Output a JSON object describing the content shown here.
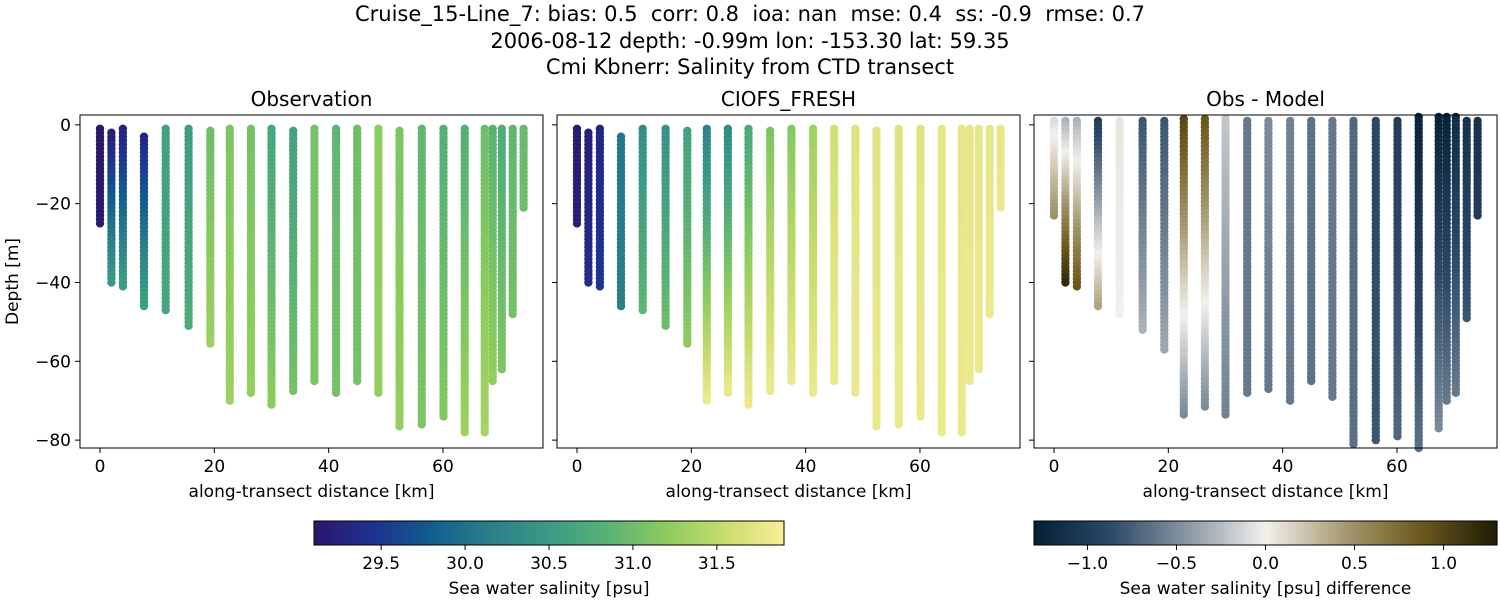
{
  "title_lines": [
    "Cruise_15-Line_7: bias: 0.5  corr: 0.8  ioa: nan  mse: 0.4  ss: -0.9  rmse: 0.7",
    "2006-08-12 depth: -0.99m lon: -153.30 lat: 59.35",
    "Cmi Kbnerr: Salinity from CTD transect"
  ],
  "colors": {
    "haline": [
      "#2a186c",
      "#1f3190",
      "#0f5f8e",
      "#2b7f8a",
      "#3a9a84",
      "#58b275",
      "#8ccc5d",
      "#c8dc6e",
      "#fbee9a"
    ],
    "diff": [
      "#041f35",
      "#2c4a68",
      "#8a97a3",
      "#f2f0ec",
      "#a89b73",
      "#6d5a1c",
      "#1f1c06"
    ]
  },
  "chart_data": [
    {
      "type": "scatter",
      "title": "Observation",
      "xlabel": "along-transect distance [km]",
      "ylabel": "Depth [m]",
      "xlim": [
        -3.5,
        77.5
      ],
      "ylim": [
        -82,
        2.5
      ],
      "xticks": [
        0,
        20,
        40,
        60
      ],
      "yticks": [
        0,
        -20,
        -40,
        -60,
        -80
      ],
      "colormap": "haline",
      "clim": [
        29.1,
        31.9
      ],
      "casts": [
        {
          "x": 0,
          "bottom": -25,
          "top": -1,
          "v_top": 29.1,
          "v_bottom": 29.15
        },
        {
          "x": 2,
          "bottom": -40.5,
          "top": -2,
          "v_top": 29.2,
          "v_bottom": 30.5
        },
        {
          "x": 4,
          "bottom": -41.5,
          "top": -1,
          "v_top": 29.25,
          "v_bottom": 30.55
        },
        {
          "x": 7.7,
          "bottom": -46.5,
          "top": -3,
          "v_top": 29.3,
          "v_bottom": 30.6
        },
        {
          "x": 11.5,
          "bottom": -47.5,
          "top": -1,
          "v_top": 30.6,
          "v_bottom": 30.65
        },
        {
          "x": 15.5,
          "bottom": -51.5,
          "top": -1,
          "v_top": 30.55,
          "v_bottom": 30.75
        },
        {
          "x": 19.3,
          "bottom": -55.5,
          "top": -1.5,
          "v_top": 31.0,
          "v_bottom": 31.3
        },
        {
          "x": 22.7,
          "bottom": -70,
          "top": -1,
          "v_top": 31.1,
          "v_bottom": 31.3
        },
        {
          "x": 26.4,
          "bottom": -68.5,
          "top": -1,
          "v_top": 31.05,
          "v_bottom": 31.25
        },
        {
          "x": 30,
          "bottom": -71,
          "top": -1,
          "v_top": 30.65,
          "v_bottom": 31.2
        },
        {
          "x": 33.8,
          "bottom": -67.5,
          "top": -1.5,
          "v_top": 30.6,
          "v_bottom": 31.05
        },
        {
          "x": 37.5,
          "bottom": -65.5,
          "top": -1,
          "v_top": 31.05,
          "v_bottom": 31.1
        },
        {
          "x": 41.3,
          "bottom": -68.5,
          "top": -1,
          "v_top": 30.9,
          "v_bottom": 31.05
        },
        {
          "x": 45,
          "bottom": -65,
          "top": -1,
          "v_top": 31.0,
          "v_bottom": 31.05
        },
        {
          "x": 48.7,
          "bottom": -68.5,
          "top": -1,
          "v_top": 31.2,
          "v_bottom": 31.25
        },
        {
          "x": 52.4,
          "bottom": -77,
          "top": -1.5,
          "v_top": 31.1,
          "v_bottom": 31.25
        },
        {
          "x": 56.3,
          "bottom": -76,
          "top": -1,
          "v_top": 30.9,
          "v_bottom": 31.1
        },
        {
          "x": 60.1,
          "bottom": -74,
          "top": -1,
          "v_top": 30.8,
          "v_bottom": 31.15
        },
        {
          "x": 63.8,
          "bottom": -78,
          "top": -1,
          "v_top": 30.8,
          "v_bottom": 31.3
        },
        {
          "x": 67.3,
          "bottom": -78,
          "top": -1,
          "v_top": 31.0,
          "v_bottom": 31.35
        },
        {
          "x": 68.7,
          "bottom": -65.5,
          "top": -1,
          "v_top": 30.85,
          "v_bottom": 31.25
        },
        {
          "x": 70.3,
          "bottom": -62,
          "top": -1,
          "v_top": 30.75,
          "v_bottom": 31.1
        },
        {
          "x": 72.2,
          "bottom": -48.5,
          "top": -1,
          "v_top": 30.9,
          "v_bottom": 31.05
        },
        {
          "x": 74.1,
          "bottom": -21.5,
          "top": -1,
          "v_top": 30.95,
          "v_bottom": 31.0
        }
      ]
    },
    {
      "type": "scatter",
      "title": "CIOFS_FRESH",
      "xlabel": "along-transect distance [km]",
      "ylabel": "",
      "xlim": [
        -3.5,
        77.5
      ],
      "ylim": [
        -82,
        2.5
      ],
      "xticks": [
        0,
        20,
        40,
        60
      ],
      "yticks": [
        0,
        -20,
        -40,
        -60,
        -80
      ],
      "colormap": "haline",
      "clim": [
        29.1,
        31.9
      ],
      "casts": [
        {
          "x": 0,
          "bottom": -25,
          "top": -1,
          "v_top": 29.15,
          "v_bottom": 29.2
        },
        {
          "x": 2,
          "bottom": -40.5,
          "top": -2,
          "v_top": 29.2,
          "v_bottom": 29.4
        },
        {
          "x": 4,
          "bottom": -41.5,
          "top": -1,
          "v_top": 29.3,
          "v_bottom": 29.5
        },
        {
          "x": 7.7,
          "bottom": -46.5,
          "top": -3,
          "v_top": 30.05,
          "v_bottom": 30.15
        },
        {
          "x": 11.5,
          "bottom": -47.5,
          "top": -1,
          "v_top": 30.35,
          "v_bottom": 30.9
        },
        {
          "x": 15.5,
          "bottom": -51.5,
          "top": -1,
          "v_top": 30.4,
          "v_bottom": 31.0
        },
        {
          "x": 19.3,
          "bottom": -55.5,
          "top": -1.5,
          "v_top": 30.6,
          "v_bottom": 31.2
        },
        {
          "x": 22.7,
          "bottom": -70,
          "top": -1,
          "v_top": 30.2,
          "v_bottom": 31.8
        },
        {
          "x": 26.4,
          "bottom": -68.5,
          "top": -1,
          "v_top": 30.3,
          "v_bottom": 31.8
        },
        {
          "x": 30,
          "bottom": -71,
          "top": -1,
          "v_top": 30.7,
          "v_bottom": 31.8
        },
        {
          "x": 33.8,
          "bottom": -67.5,
          "top": -1.5,
          "v_top": 31.1,
          "v_bottom": 31.8
        },
        {
          "x": 37.5,
          "bottom": -65.5,
          "top": -1,
          "v_top": 31.15,
          "v_bottom": 31.8
        },
        {
          "x": 41.3,
          "bottom": -68.5,
          "top": -1,
          "v_top": 31.3,
          "v_bottom": 31.8
        },
        {
          "x": 45,
          "bottom": -65,
          "top": -1,
          "v_top": 31.6,
          "v_bottom": 31.8
        },
        {
          "x": 48.7,
          "bottom": -68.5,
          "top": -1,
          "v_top": 31.7,
          "v_bottom": 31.8
        },
        {
          "x": 52.4,
          "bottom": -77,
          "top": -1.5,
          "v_top": 31.7,
          "v_bottom": 31.8
        },
        {
          "x": 56.3,
          "bottom": -76,
          "top": -1,
          "v_top": 31.7,
          "v_bottom": 31.8
        },
        {
          "x": 60.1,
          "bottom": -74,
          "top": -1,
          "v_top": 31.7,
          "v_bottom": 31.8
        },
        {
          "x": 63.8,
          "bottom": -78,
          "top": -1,
          "v_top": 31.75,
          "v_bottom": 31.8
        },
        {
          "x": 67.3,
          "bottom": -78,
          "top": -1,
          "v_top": 31.75,
          "v_bottom": 31.8
        },
        {
          "x": 68.7,
          "bottom": -65.5,
          "top": -1,
          "v_top": 31.75,
          "v_bottom": 31.8
        },
        {
          "x": 70.3,
          "bottom": -62,
          "top": -1,
          "v_top": 31.75,
          "v_bottom": 31.8
        },
        {
          "x": 72.2,
          "bottom": -48.5,
          "top": -1,
          "v_top": 31.75,
          "v_bottom": 31.8
        },
        {
          "x": 74.1,
          "bottom": -21.5,
          "top": -1,
          "v_top": 31.75,
          "v_bottom": 31.8
        }
      ]
    },
    {
      "type": "scatter",
      "title": "Obs - Model",
      "xlabel": "along-transect distance [km]",
      "ylabel": "",
      "xlim": [
        -3.5,
        77.5
      ],
      "ylim": [
        -82,
        2.5
      ],
      "xticks": [
        0,
        20,
        40,
        60
      ],
      "yticks": [
        0,
        -20,
        -40,
        -60,
        -80
      ],
      "colormap": "diff",
      "clim": [
        -1.3,
        1.3
      ],
      "casts": [
        {
          "x": 0,
          "bottom": -23.5,
          "top": 1,
          "v_top": -0.1,
          "v_bottom": 0.5
        },
        {
          "x": 2,
          "bottom": -40.5,
          "top": 1,
          "v_top": -0.3,
          "v_bottom": 1.2
        },
        {
          "x": 4,
          "bottom": -41.5,
          "top": 1,
          "v_top": -0.3,
          "v_bottom": 0.9
        },
        {
          "x": 7.7,
          "bottom": -46.5,
          "top": 1,
          "v_top": -1.0,
          "v_bottom": 0.4
        },
        {
          "x": 11.5,
          "bottom": -48.5,
          "top": 1,
          "v_top": 0.05,
          "v_bottom": 0.0
        },
        {
          "x": 15.5,
          "bottom": -52.5,
          "top": 1,
          "v_top": -0.8,
          "v_bottom": -0.3
        },
        {
          "x": 19.3,
          "bottom": -57,
          "top": 1,
          "v_top": -0.8,
          "v_bottom": -0.35
        },
        {
          "x": 22.7,
          "bottom": -73.5,
          "top": 1.5,
          "v_top": 1.0,
          "v_bottom": -0.5
        },
        {
          "x": 26.4,
          "bottom": -71.5,
          "top": 1.5,
          "v_top": 0.9,
          "v_bottom": -0.5
        },
        {
          "x": 30,
          "bottom": -73.5,
          "top": 1.5,
          "v_top": -0.2,
          "v_bottom": -0.55
        },
        {
          "x": 33.8,
          "bottom": -68.5,
          "top": 1,
          "v_top": -0.6,
          "v_bottom": -0.6
        },
        {
          "x": 37.5,
          "bottom": -67,
          "top": 1,
          "v_top": -0.5,
          "v_bottom": -0.6
        },
        {
          "x": 41.3,
          "bottom": -70,
          "top": 1,
          "v_top": -0.55,
          "v_bottom": -0.6
        },
        {
          "x": 45,
          "bottom": -65.5,
          "top": 1,
          "v_top": -0.65,
          "v_bottom": -0.65
        },
        {
          "x": 48.7,
          "bottom": -69.5,
          "top": 1,
          "v_top": -0.6,
          "v_bottom": -0.6
        },
        {
          "x": 52.4,
          "bottom": -81,
          "top": 1,
          "v_top": -0.7,
          "v_bottom": -0.65
        },
        {
          "x": 56.3,
          "bottom": -80,
          "top": 1,
          "v_top": -0.9,
          "v_bottom": -0.8
        },
        {
          "x": 60.1,
          "bottom": -79,
          "top": 1,
          "v_top": -1.0,
          "v_bottom": -0.7
        },
        {
          "x": 63.8,
          "bottom": -82,
          "top": 2,
          "v_top": -1.25,
          "v_bottom": -0.65
        },
        {
          "x": 67.3,
          "bottom": -77.5,
          "top": 2,
          "v_top": -1.25,
          "v_bottom": -0.5
        },
        {
          "x": 68.7,
          "bottom": -70,
          "top": 2,
          "v_top": -1.25,
          "v_bottom": -0.6
        },
        {
          "x": 70.3,
          "bottom": -68,
          "top": 2,
          "v_top": -1.15,
          "v_bottom": -0.6
        },
        {
          "x": 72.2,
          "bottom": -49.5,
          "top": 1,
          "v_top": -1.1,
          "v_bottom": -0.8
        },
        {
          "x": 74.1,
          "bottom": -23,
          "top": 1,
          "v_top": -1.1,
          "v_bottom": -1.0
        }
      ]
    }
  ],
  "colorbars": [
    {
      "label": "Sea water salinity [psu]",
      "colormap": "haline",
      "range": [
        29.1,
        31.9
      ],
      "ticks": [
        29.5,
        30.0,
        30.5,
        31.0,
        31.5
      ],
      "tick_labels": [
        "29.5",
        "30.0",
        "30.5",
        "31.0",
        "31.5"
      ]
    },
    {
      "label": "Sea water salinity [psu] difference",
      "colormap": "diff",
      "range": [
        -1.3,
        1.3
      ],
      "ticks": [
        -1.0,
        -0.5,
        0.0,
        0.5,
        1.0
      ],
      "tick_labels": [
        "−1.0",
        "−0.5",
        "0.0",
        "0.5",
        "1.0"
      ]
    }
  ]
}
